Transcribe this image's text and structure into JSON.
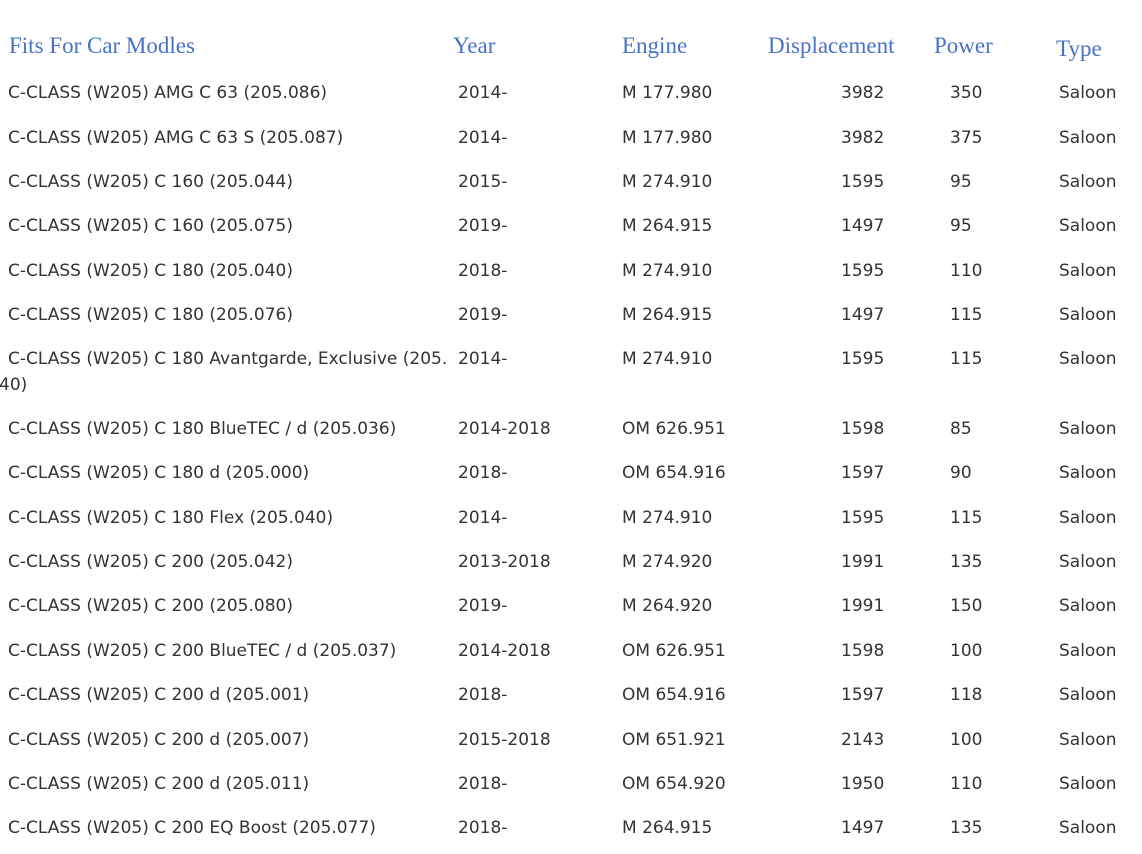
{
  "headers": {
    "model": "Fits For Car Modles",
    "year": "Year",
    "engine": "Engine",
    "displacement": "Displacement",
    "power": "Power",
    "type": "Type"
  },
  "rows": [
    {
      "model": "C-CLASS (W205) AMG C 63 (205.086)",
      "year": "2014-",
      "engine": "M 177.980",
      "displacement": "3982",
      "power": "350",
      "type": "Saloon"
    },
    {
      "model": "C-CLASS (W205) AMG C 63 S (205.087)",
      "year": "2014-",
      "engine": "M 177.980",
      "displacement": "3982",
      "power": "375",
      "type": "Saloon"
    },
    {
      "model": "C-CLASS (W205) C 160 (205.044)",
      "year": "2015-",
      "engine": "M 274.910",
      "displacement": "1595",
      "power": "95",
      "type": "Saloon"
    },
    {
      "model": "C-CLASS (W205) C 160 (205.075)",
      "year": "2019-",
      "engine": "M 264.915",
      "displacement": "1497",
      "power": "95",
      "type": "Saloon"
    },
    {
      "model": "C-CLASS (W205) C 180 (205.040)",
      "year": "2018-",
      "engine": "M 274.910",
      "displacement": "1595",
      "power": "110",
      "type": "Saloon"
    },
    {
      "model": "C-CLASS (W205) C 180 (205.076)",
      "year": "2019-",
      "engine": "M 264.915",
      "displacement": "1497",
      "power": "115",
      "type": "Saloon"
    },
    {
      "model": "C-CLASS (W205) C 180 Avantgarde, Exclusive (205.",
      "model_cont": "40)",
      "year": "2014-",
      "engine": "M 274.910",
      "displacement": "1595",
      "power": "115",
      "type": "Saloon"
    },
    {
      "model": "C-CLASS (W205) C 180 BlueTEC / d (205.036)",
      "year": "2014-2018",
      "engine": "OM 626.951",
      "displacement": "1598",
      "power": "85",
      "type": "Saloon"
    },
    {
      "model": "C-CLASS (W205) C 180 d (205.000)",
      "year": "2018-",
      "engine": "OM 654.916",
      "displacement": "1597",
      "power": "90",
      "type": "Saloon"
    },
    {
      "model": "C-CLASS (W205) C 180 Flex (205.040)",
      "year": "2014-",
      "engine": "M 274.910",
      "displacement": "1595",
      "power": "115",
      "type": "Saloon"
    },
    {
      "model": "C-CLASS (W205) C 200 (205.042)",
      "year": "2013-2018",
      "engine": "M 274.920",
      "displacement": "1991",
      "power": "135",
      "type": "Saloon"
    },
    {
      "model": "C-CLASS (W205) C 200 (205.080)",
      "year": "2019-",
      "engine": "M 264.920",
      "displacement": "1991",
      "power": "150",
      "type": "Saloon"
    },
    {
      "model": "C-CLASS (W205) C 200 BlueTEC / d (205.037)",
      "year": "2014-2018",
      "engine": "OM 626.951",
      "displacement": "1598",
      "power": "100",
      "type": "Saloon"
    },
    {
      "model": "C-CLASS (W205) C 200 d (205.001)",
      "year": "2018-",
      "engine": "OM 654.916",
      "displacement": "1597",
      "power": "118",
      "type": "Saloon"
    },
    {
      "model": "C-CLASS (W205) C 200 d (205.007)",
      "year": "2015-2018",
      "engine": "OM 651.921",
      "displacement": "2143",
      "power": "100",
      "type": "Saloon"
    },
    {
      "model": "C-CLASS (W205) C 200 d (205.011)",
      "year": "2018-",
      "engine": "OM 654.920",
      "displacement": "1950",
      "power": "110",
      "type": "Saloon"
    },
    {
      "model": "C-CLASS (W205) C 200 EQ Boost (205.077)",
      "year": "2018-",
      "engine": "M 264.915",
      "displacement": "1497",
      "power": "135",
      "type": "Saloon"
    }
  ],
  "colors": {
    "header": "#4a72c4",
    "text": "#333333",
    "background": "#ffffff"
  }
}
